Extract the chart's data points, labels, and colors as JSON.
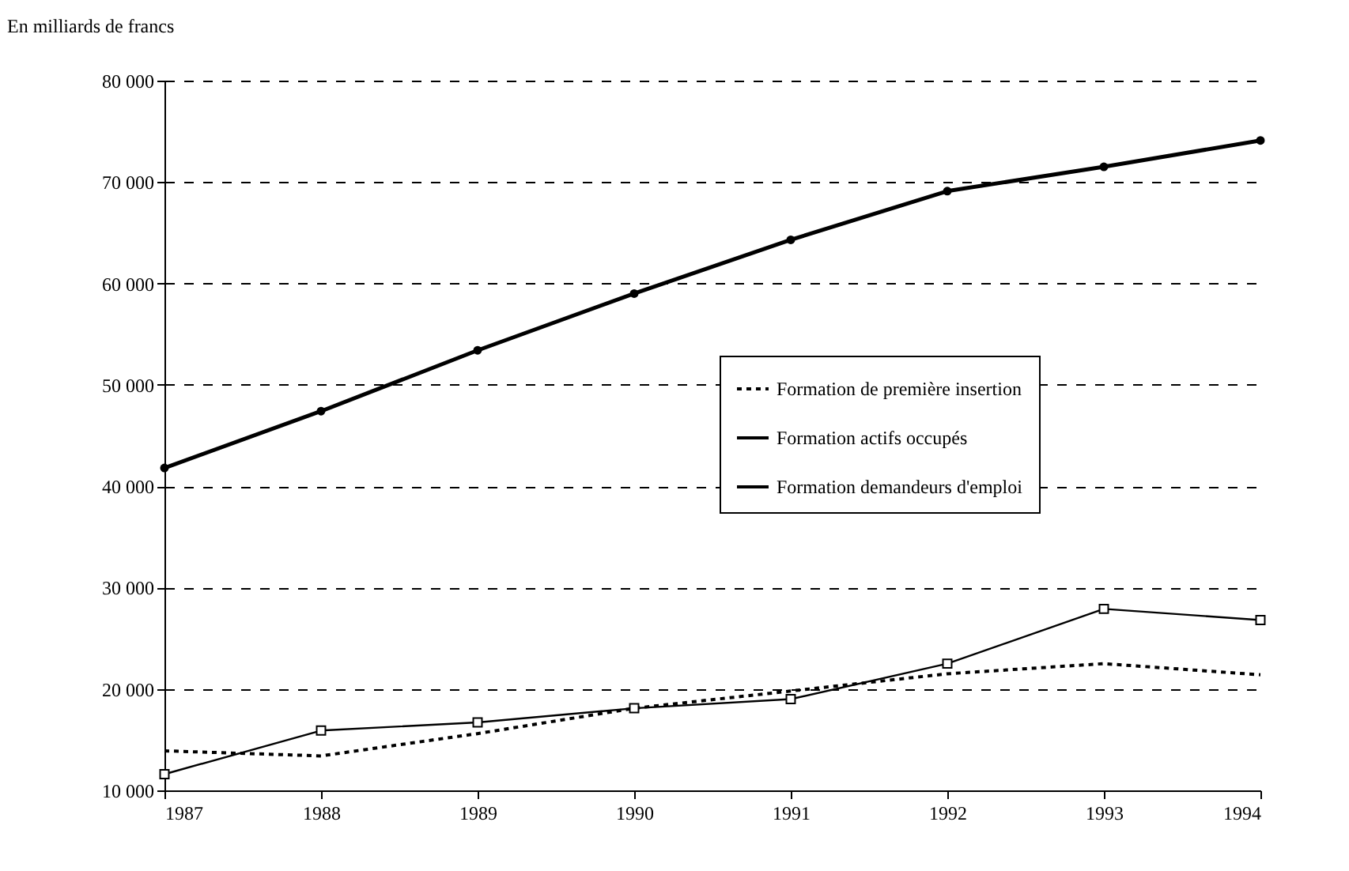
{
  "chart_data": {
    "type": "line",
    "ylabel": "En milliards de francs",
    "x": [
      1987,
      1988,
      1989,
      1990,
      1991,
      1992,
      1993,
      1994
    ],
    "xlim": [
      1987,
      1994
    ],
    "xticks": [
      1987,
      1988,
      1989,
      1990,
      1991,
      1992,
      1993,
      1994
    ],
    "ylim": [
      10000,
      80000
    ],
    "yticks": [
      {
        "value": 10000,
        "label": "10 000"
      },
      {
        "value": 20000,
        "label": "20 000"
      },
      {
        "value": 30000,
        "label": "30 000"
      },
      {
        "value": 40000,
        "label": "40 000"
      },
      {
        "value": 50000,
        "label": "50 000"
      },
      {
        "value": 60000,
        "label": "60 000"
      },
      {
        "value": 70000,
        "label": "70 000"
      },
      {
        "value": 80000,
        "label": "80 000"
      }
    ],
    "grid": "y",
    "legend": "right",
    "series": [
      {
        "name": "Formation de première insertion",
        "color": "#000000",
        "line_style": "dotted",
        "marker": "none",
        "values": [
          13900,
          13400,
          15600,
          18100,
          19800,
          21500,
          22500,
          21400
        ]
      },
      {
        "name": "Formation actifs occupés",
        "color": "#000000",
        "line_style": "solid",
        "marker": "circle",
        "values": [
          41800,
          47400,
          53400,
          59000,
          64300,
          69100,
          71500,
          74100
        ]
      },
      {
        "name": "Formation demandeurs d'emploi",
        "color": "#000000",
        "line_style": "solid",
        "marker": "square",
        "values": [
          11600,
          15900,
          16700,
          18100,
          19000,
          22500,
          27900,
          26800
        ]
      }
    ]
  }
}
